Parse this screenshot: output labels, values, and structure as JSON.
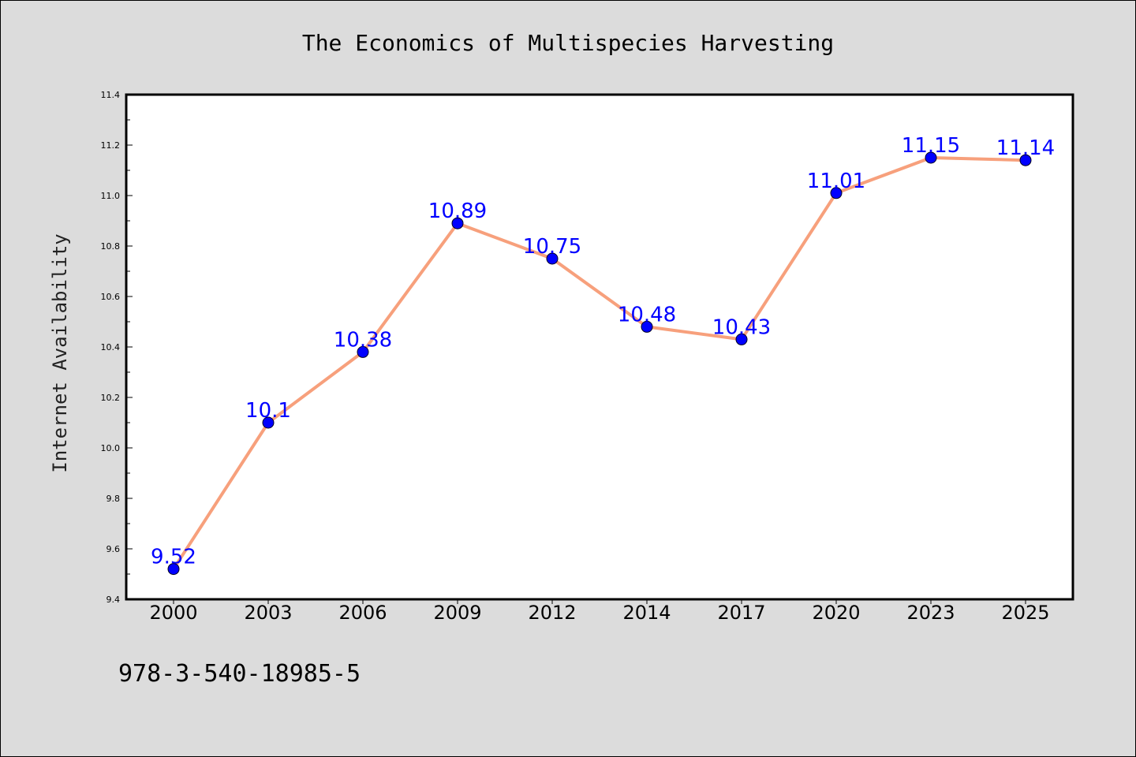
{
  "chart_data": {
    "type": "line",
    "title": "The Economics of Multispecies Harvesting",
    "ylabel": "Internet Availability",
    "xlabel": "",
    "categories": [
      "2000",
      "2003",
      "2006",
      "2009",
      "2012",
      "2014",
      "2017",
      "2020",
      "2023",
      "2025"
    ],
    "series": [
      {
        "values": [
          9.52,
          10.1,
          10.38,
          10.89,
          10.75,
          10.48,
          10.43,
          11.01,
          11.15,
          11.14
        ],
        "data_labels": [
          "9.52",
          "10.1",
          "10.38",
          "10.89",
          "10.75",
          "10.48",
          "10.43",
          "11.01",
          "11.15",
          "11.14"
        ]
      }
    ],
    "ylim": [
      9.4,
      11.4
    ],
    "yticks": [
      "9.4",
      "9.6",
      "9.8",
      "10.0",
      "10.2",
      "10.4",
      "10.6",
      "10.8",
      "11.0",
      "11.2",
      "11.4"
    ],
    "grid": false,
    "colors": {
      "line": "#f7a07c",
      "marker": "#0000ff",
      "data_label": "#0000ff",
      "plot_bg": "#ffffff",
      "page_bg": "#dcdcdc"
    }
  },
  "footnote": "978-3-540-18985-5"
}
